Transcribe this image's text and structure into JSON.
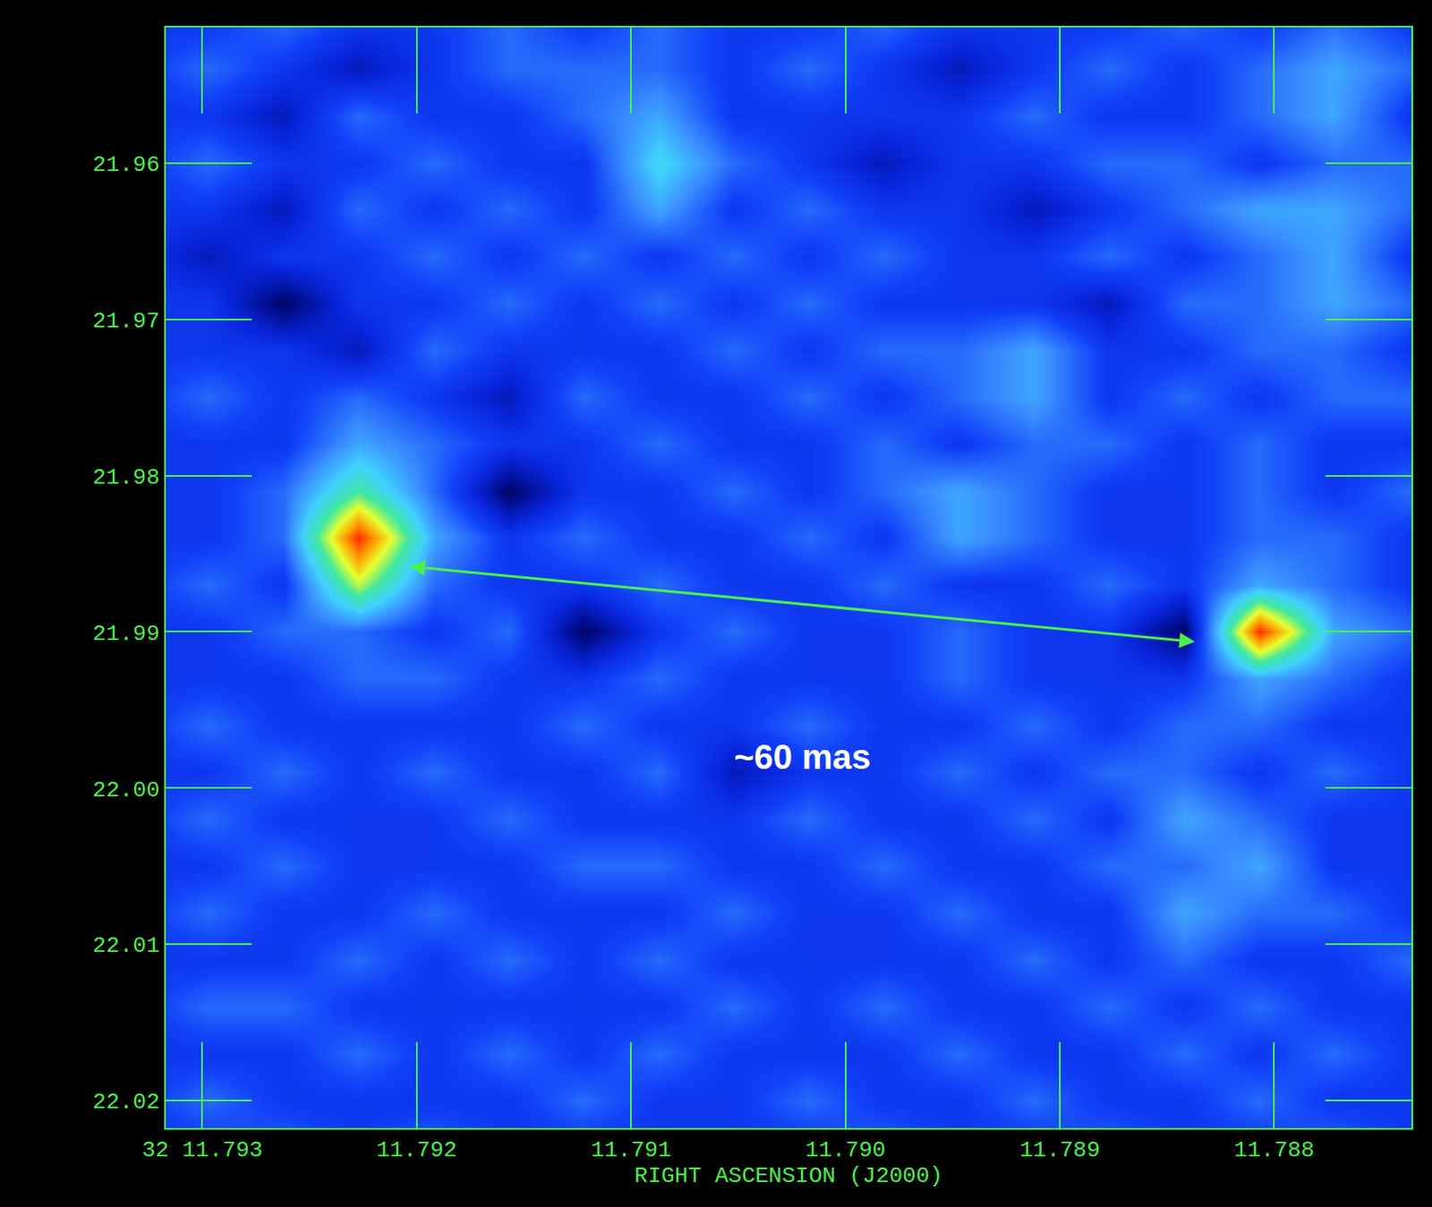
{
  "chart_data": {
    "type": "heatmap",
    "xlabel": "RIGHT ASCENSION (J2000)",
    "xlim": [
      11.79317,
      11.78736
    ],
    "xticks": [
      {
        "value": 11.793,
        "label": "32 11.793"
      },
      11.792,
      11.791,
      {
        "value": 11.79,
        "label": "11.790"
      },
      11.789,
      11.788
    ],
    "ylim": [
      22.02174,
      21.95134
    ],
    "yticks": [
      21.96,
      21.97,
      21.98,
      21.99,
      {
        "value": 22,
        "label": "22.00"
      },
      22.01,
      22.02
    ],
    "grid": false,
    "x": [
      11.79332,
      11.79297,
      11.79262,
      11.79227,
      11.79192,
      11.79157,
      11.79122,
      11.79087,
      11.79052,
      11.79017,
      11.78982,
      11.78947,
      11.78912,
      11.78877,
      11.78842,
      11.78807,
      11.78772,
      11.78737
    ],
    "y": [
      21.951,
      21.954,
      21.957,
      21.96,
      21.963,
      21.966,
      21.969,
      21.972,
      21.975,
      21.978,
      21.981,
      21.984,
      21.987,
      21.99,
      21.993,
      21.996,
      21.999,
      22.002,
      22.005,
      22.008,
      22.011,
      22.014,
      22.017,
      22.02,
      22.023
    ],
    "cells": [
      [
        2,
        2,
        3,
        2,
        2,
        3,
        2,
        3,
        2,
        2,
        3,
        2,
        2,
        2,
        3,
        2,
        3,
        2
      ],
      [
        2,
        3,
        2,
        1,
        2,
        3,
        3,
        3,
        2,
        3,
        2,
        1,
        2,
        3,
        2,
        3,
        4,
        3
      ],
      [
        2,
        2,
        1,
        3,
        2,
        2,
        3,
        4,
        2,
        2,
        2,
        2,
        3,
        2,
        2,
        3,
        4,
        2
      ],
      [
        2,
        3,
        2,
        2,
        3,
        2,
        2,
        5,
        3,
        2,
        1,
        2,
        2,
        3,
        3,
        2,
        3,
        3
      ],
      [
        2,
        2,
        1,
        3,
        2,
        3,
        2,
        4,
        2,
        3,
        2,
        2,
        1,
        2,
        3,
        4,
        4,
        3
      ],
      [
        2,
        1,
        2,
        2,
        3,
        2,
        3,
        2,
        3,
        2,
        3,
        2,
        2,
        3,
        2,
        3,
        4,
        2
      ],
      [
        2,
        2,
        0,
        2,
        2,
        3,
        2,
        3,
        2,
        3,
        2,
        2,
        2,
        1,
        3,
        3,
        4,
        3
      ],
      [
        2,
        2,
        2,
        1,
        3,
        2,
        2,
        2,
        3,
        2,
        3,
        3,
        4,
        2,
        2,
        3,
        3,
        2
      ],
      [
        2,
        3,
        2,
        3,
        2,
        1,
        3,
        2,
        2,
        3,
        2,
        3,
        4,
        2,
        3,
        2,
        3,
        3
      ],
      [
        2,
        2,
        2,
        4,
        3,
        2,
        2,
        3,
        2,
        2,
        3,
        2,
        3,
        3,
        2,
        3,
        2,
        2
      ],
      [
        2,
        2,
        3,
        6,
        3,
        0,
        2,
        2,
        3,
        2,
        3,
        4,
        3,
        2,
        2,
        3,
        2,
        3
      ],
      [
        2,
        2,
        3,
        10,
        4,
        2,
        3,
        2,
        2,
        3,
        2,
        4,
        3,
        2,
        2,
        3,
        3,
        2
      ],
      [
        2,
        3,
        2,
        7,
        3,
        2,
        2,
        3,
        2,
        2,
        3,
        2,
        2,
        3,
        2,
        4,
        3,
        2
      ],
      [
        2,
        2,
        3,
        3,
        2,
        3,
        0,
        2,
        3,
        2,
        2,
        3,
        2,
        2,
        0,
        10,
        4,
        3
      ],
      [
        2,
        2,
        2,
        3,
        3,
        2,
        2,
        3,
        2,
        2,
        2,
        3,
        2,
        2,
        2,
        4,
        3,
        2
      ],
      [
        2,
        3,
        2,
        2,
        2,
        2,
        3,
        2,
        2,
        3,
        2,
        2,
        3,
        2,
        3,
        3,
        2,
        2
      ],
      [
        2,
        2,
        3,
        2,
        3,
        2,
        2,
        3,
        1,
        2,
        2,
        3,
        2,
        3,
        3,
        2,
        3,
        2
      ],
      [
        2,
        3,
        2,
        2,
        2,
        3,
        2,
        2,
        2,
        3,
        2,
        2,
        3,
        2,
        4,
        3,
        2,
        2
      ],
      [
        2,
        2,
        3,
        2,
        2,
        2,
        3,
        3,
        2,
        2,
        3,
        2,
        2,
        3,
        3,
        4,
        2,
        2
      ],
      [
        2,
        3,
        2,
        2,
        3,
        2,
        2,
        2,
        3,
        2,
        2,
        3,
        2,
        2,
        4,
        3,
        3,
        2
      ],
      [
        2,
        2,
        2,
        3,
        2,
        3,
        2,
        3,
        2,
        2,
        2,
        2,
        3,
        2,
        3,
        2,
        2,
        3
      ],
      [
        2,
        3,
        3,
        2,
        2,
        2,
        2,
        2,
        3,
        2,
        3,
        2,
        2,
        3,
        2,
        3,
        2,
        2
      ],
      [
        2,
        2,
        2,
        3,
        2,
        3,
        2,
        3,
        2,
        2,
        2,
        3,
        2,
        2,
        3,
        2,
        3,
        2
      ],
      [
        2,
        3,
        2,
        2,
        2,
        2,
        3,
        2,
        2,
        3,
        2,
        2,
        3,
        2,
        2,
        3,
        2,
        2
      ],
      [
        2,
        2,
        3,
        2,
        3,
        2,
        2,
        2,
        2,
        2,
        3,
        2,
        2,
        3,
        2,
        2,
        3,
        2
      ]
    ],
    "zlim": [
      -1,
      10
    ],
    "annotations": [
      {
        "text": "~60 mas",
        "x": 11.7902,
        "y": 21.998
      }
    ],
    "arrow": {
      "x0": 11.79204,
      "y0": 21.98581,
      "x1": 11.78837,
      "y1": 21.99064
    }
  }
}
